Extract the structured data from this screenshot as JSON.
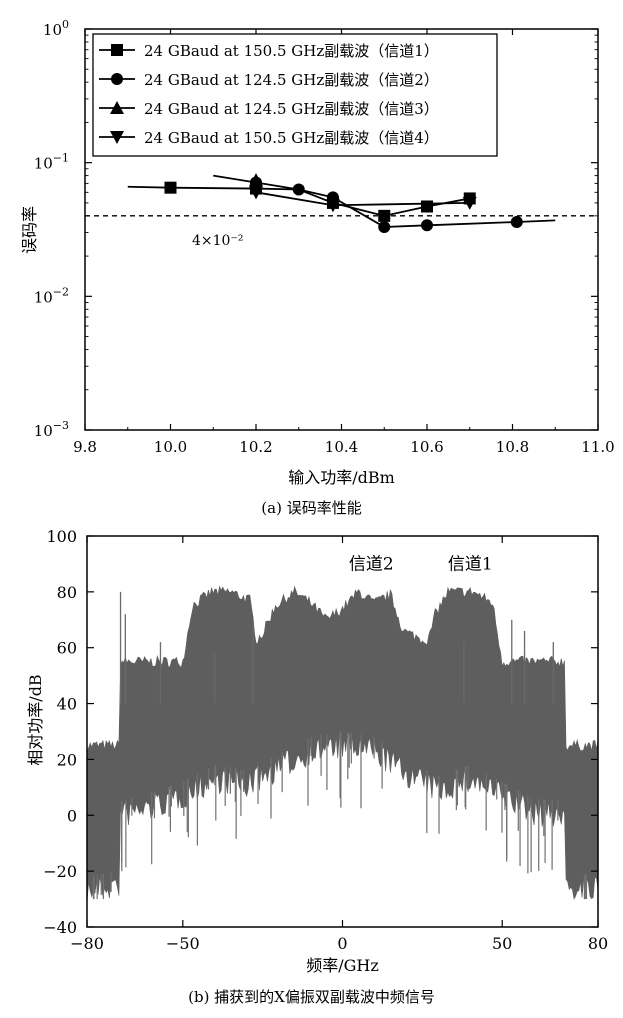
{
  "chart_data": [
    {
      "type": "line",
      "caption": "(a) 误码率性能",
      "xlabel": "输入功率/dBm",
      "ylabel": "误码率",
      "xlim": [
        9.8,
        11.0
      ],
      "xticks": [
        "9.8",
        "10.0",
        "10.2",
        "10.4",
        "10.6",
        "10.8",
        "11.0"
      ],
      "ylim": [
        0.001,
        1
      ],
      "yscale": "log",
      "yticks": [
        {
          "base": "10",
          "exp": "0",
          "value": 1
        },
        {
          "base": "10",
          "exp": "−1",
          "value": 0.1
        },
        {
          "base": "10",
          "exp": "−2",
          "value": 0.01
        },
        {
          "base": "10",
          "exp": "−3",
          "value": 0.001
        }
      ],
      "legend_position": "top-left",
      "threshold": {
        "value": 0.04,
        "label": "4×10⁻²",
        "style": "dashed"
      },
      "series": [
        {
          "name": "24 GBaud at 150.5 GHz副载波（信道1）",
          "marker": "square",
          "x": [
            9.9,
            10.0,
            10.2,
            10.3,
            10.38,
            10.5,
            10.6,
            10.7
          ],
          "y": [
            0.066,
            0.065,
            0.064,
            0.063,
            0.05,
            0.04,
            0.047,
            0.054
          ]
        },
        {
          "name": "24 GBaud at 124.5 GHz副载波（信道2）",
          "marker": "circle",
          "x": [
            10.1,
            10.2,
            10.3,
            10.38,
            10.5,
            10.6,
            10.81,
            10.9
          ],
          "y": [
            0.08,
            0.071,
            0.063,
            0.055,
            0.033,
            0.034,
            0.036,
            0.037
          ]
        },
        {
          "name": "24 GBaud at 124.5 GHz副载波（信道3）",
          "marker": "triangle-up",
          "x": [
            10.2
          ],
          "y": [
            0.074
          ]
        },
        {
          "name": "24 GBaud at 150.5 GHz副载波（信道4）",
          "marker": "triangle-down",
          "x": [
            10.2,
            10.38,
            10.7
          ],
          "y": [
            0.06,
            0.048,
            0.05
          ]
        }
      ]
    },
    {
      "type": "area",
      "caption": "(b) 捕获到的X偏振双副载波中频信号",
      "xlabel": "频率/GHz",
      "ylabel": "相对功率/dB",
      "xlim": [
        -80,
        80
      ],
      "ylim": [
        -40,
        100
      ],
      "xticks": [
        "−80",
        "−50",
        "0",
        "50",
        "80"
      ],
      "xtick_values": [
        -80,
        -50,
        0,
        50,
        80
      ],
      "yticks": [
        "−40",
        "−20",
        "0",
        "20",
        "40",
        "60",
        "80",
        "100"
      ],
      "ytick_values": [
        -40,
        -20,
        0,
        20,
        40,
        60,
        80,
        100
      ],
      "annotations": [
        {
          "text": "信道2",
          "x": 9,
          "y": 88
        },
        {
          "text": "信道1",
          "x": 40,
          "y": 88
        }
      ],
      "envelope_upper": {
        "x": [
          -80,
          -70,
          -69.5,
          -50,
          -47,
          -41,
          -35,
          -29,
          -27,
          -25,
          -21,
          -15,
          -10,
          -5,
          0,
          5,
          10,
          15,
          19,
          25,
          27,
          29,
          33,
          41,
          47,
          50,
          69.5,
          70,
          80
        ],
        "y": [
          25,
          25,
          55,
          55,
          75,
          80,
          80,
          77,
          63,
          65,
          75,
          80,
          76,
          70,
          74,
          80,
          76,
          79,
          66,
          63,
          63,
          72,
          80,
          80,
          76,
          55,
          55,
          25,
          25
        ]
      },
      "envelope_lower": {
        "x": [
          -80,
          -70,
          -69.5,
          -60,
          -50,
          -40,
          -30,
          -20,
          -10,
          0,
          10,
          20,
          30,
          40,
          50,
          60,
          69.5,
          70,
          80
        ],
        "y": [
          -22,
          -20,
          5,
          8,
          12,
          18,
          16,
          22,
          28,
          30,
          28,
          20,
          14,
          18,
          12,
          6,
          5,
          -20,
          -22
        ]
      },
      "fill_color": "#5e5e5e"
    }
  ]
}
